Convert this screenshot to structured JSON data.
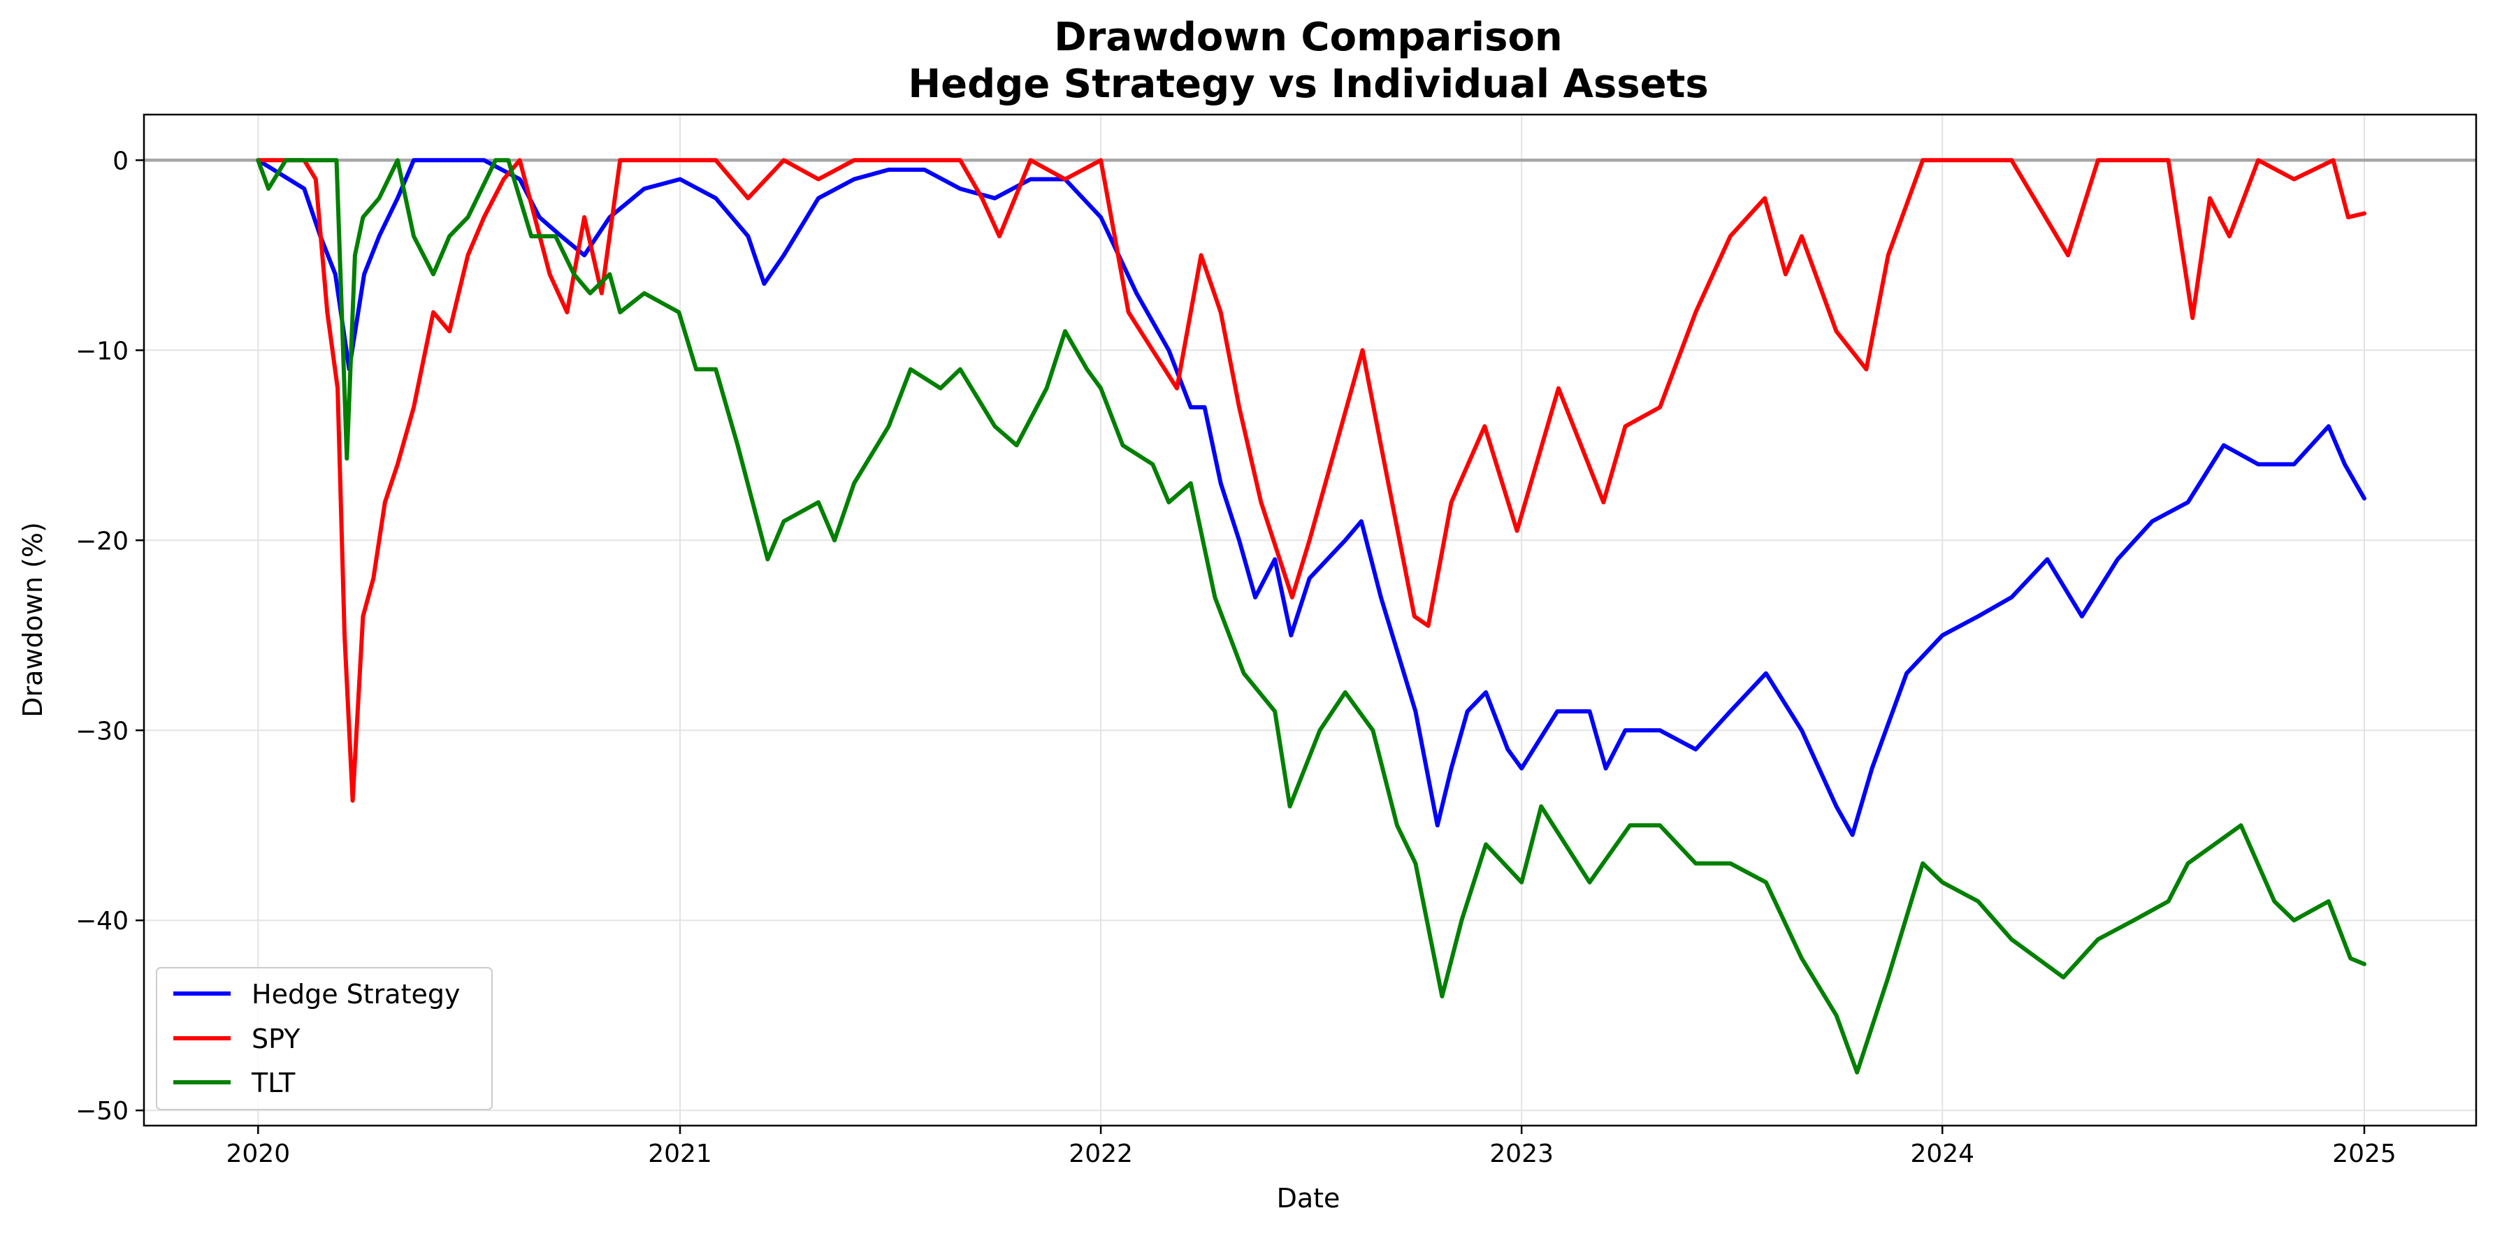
{
  "chart_data": {
    "type": "line",
    "title": "Drawdown Comparison",
    "subtitle": "Hedge Strategy vs Individual Assets",
    "xlabel": "Date",
    "ylabel": "Drawdown (%)",
    "xlim": [
      "2019-09-24",
      "2025-04-08"
    ],
    "ylim": [
      -50.8,
      2.4
    ],
    "x_ticks": [
      "2020",
      "2021",
      "2022",
      "2023",
      "2024",
      "2025"
    ],
    "y_ticks": [
      0,
      -10,
      -20,
      -30,
      -40,
      -50
    ],
    "grid": true,
    "legend_position": "lower-left",
    "zero_line": 0,
    "series": [
      {
        "name": "Hedge Strategy",
        "color": "#0000ff",
        "points": [
          [
            "2020-01-01",
            0
          ],
          [
            "2020-02-10",
            -1.5
          ],
          [
            "2020-02-24",
            -4
          ],
          [
            "2020-03-08",
            -6
          ],
          [
            "2020-03-20",
            -11
          ],
          [
            "2020-04-02",
            -6
          ],
          [
            "2020-04-15",
            -4
          ],
          [
            "2020-05-01",
            -2
          ],
          [
            "2020-05-15",
            0
          ],
          [
            "2020-06-15",
            0
          ],
          [
            "2020-07-15",
            0
          ],
          [
            "2020-08-15",
            -1
          ],
          [
            "2020-09-01",
            -3
          ],
          [
            "2020-09-20",
            -4
          ],
          [
            "2020-10-10",
            -5
          ],
          [
            "2020-11-01",
            -3
          ],
          [
            "2020-12-01",
            -1.5
          ],
          [
            "2021-01-01",
            -1
          ],
          [
            "2021-02-01",
            -2
          ],
          [
            "2021-03-01",
            -4
          ],
          [
            "2021-03-15",
            -6.5
          ],
          [
            "2021-04-01",
            -5
          ],
          [
            "2021-05-01",
            -2
          ],
          [
            "2021-06-01",
            -1
          ],
          [
            "2021-07-01",
            -0.5
          ],
          [
            "2021-08-01",
            -0.5
          ],
          [
            "2021-09-01",
            -1.5
          ],
          [
            "2021-10-01",
            -2
          ],
          [
            "2021-11-01",
            -1
          ],
          [
            "2021-12-01",
            -1
          ],
          [
            "2022-01-01",
            -3
          ],
          [
            "2022-02-01",
            -7
          ],
          [
            "2022-03-01",
            -10
          ],
          [
            "2022-03-20",
            -13
          ],
          [
            "2022-04-01",
            -13
          ],
          [
            "2022-04-15",
            -17
          ],
          [
            "2022-05-01",
            -20
          ],
          [
            "2022-05-15",
            -23
          ],
          [
            "2022-06-01",
            -21
          ],
          [
            "2022-06-15",
            -25
          ],
          [
            "2022-07-01",
            -22
          ],
          [
            "2022-08-01",
            -20
          ],
          [
            "2022-08-15",
            -19
          ],
          [
            "2022-09-01",
            -23
          ],
          [
            "2022-10-01",
            -29
          ],
          [
            "2022-10-20",
            -35
          ],
          [
            "2022-11-01",
            -32
          ],
          [
            "2022-11-15",
            -29
          ],
          [
            "2022-12-01",
            -28
          ],
          [
            "2022-12-20",
            -31
          ],
          [
            "2023-01-01",
            -32
          ],
          [
            "2023-02-01",
            -29
          ],
          [
            "2023-03-01",
            -29
          ],
          [
            "2023-03-15",
            -32
          ],
          [
            "2023-04-01",
            -30
          ],
          [
            "2023-05-01",
            -30
          ],
          [
            "2023-06-01",
            -31
          ],
          [
            "2023-07-01",
            -29
          ],
          [
            "2023-08-01",
            -27
          ],
          [
            "2023-09-01",
            -30
          ],
          [
            "2023-10-01",
            -34
          ],
          [
            "2023-10-15",
            -35.5
          ],
          [
            "2023-11-01",
            -32
          ],
          [
            "2023-12-01",
            -27
          ],
          [
            "2024-01-01",
            -25
          ],
          [
            "2024-02-01",
            -24
          ],
          [
            "2024-03-01",
            -23
          ],
          [
            "2024-04-01",
            -21
          ],
          [
            "2024-05-01",
            -24
          ],
          [
            "2024-06-01",
            -21
          ],
          [
            "2024-07-01",
            -19
          ],
          [
            "2024-08-01",
            -18
          ],
          [
            "2024-09-01",
            -15
          ],
          [
            "2024-10-01",
            -16
          ],
          [
            "2024-11-01",
            -16
          ],
          [
            "2024-12-01",
            -14
          ],
          [
            "2024-12-15",
            -16
          ],
          [
            "2025-01-01",
            -17.8
          ]
        ]
      },
      {
        "name": "SPY",
        "color": "#ff0000",
        "points": [
          [
            "2020-01-01",
            0
          ],
          [
            "2020-02-10",
            0
          ],
          [
            "2020-02-20",
            -1
          ],
          [
            "2020-03-01",
            -8
          ],
          [
            "2020-03-10",
            -12
          ],
          [
            "2020-03-16",
            -25
          ],
          [
            "2020-03-23",
            -33.7
          ],
          [
            "2020-04-01",
            -24
          ],
          [
            "2020-04-10",
            -22
          ],
          [
            "2020-04-20",
            -18
          ],
          [
            "2020-05-01",
            -16
          ],
          [
            "2020-05-15",
            -13
          ],
          [
            "2020-06-01",
            -8
          ],
          [
            "2020-06-15",
            -9
          ],
          [
            "2020-07-01",
            -5
          ],
          [
            "2020-07-15",
            -3
          ],
          [
            "2020-08-01",
            -1
          ],
          [
            "2020-08-15",
            0
          ],
          [
            "2020-09-10",
            -6
          ],
          [
            "2020-09-25",
            -8
          ],
          [
            "2020-10-10",
            -3
          ],
          [
            "2020-10-25",
            -7
          ],
          [
            "2020-11-10",
            0
          ],
          [
            "2020-12-01",
            0
          ],
          [
            "2021-01-01",
            0
          ],
          [
            "2021-02-01",
            0
          ],
          [
            "2021-03-01",
            -2
          ],
          [
            "2021-04-01",
            0
          ],
          [
            "2021-05-01",
            -1
          ],
          [
            "2021-06-01",
            0
          ],
          [
            "2021-07-01",
            0
          ],
          [
            "2021-08-01",
            0
          ],
          [
            "2021-09-01",
            0
          ],
          [
            "2021-09-20",
            -2
          ],
          [
            "2021-10-05",
            -4
          ],
          [
            "2021-11-01",
            0
          ],
          [
            "2021-12-01",
            -1
          ],
          [
            "2022-01-01",
            0
          ],
          [
            "2022-01-25",
            -8
          ],
          [
            "2022-02-15",
            -10
          ],
          [
            "2022-03-08",
            -12
          ],
          [
            "2022-03-29",
            -5
          ],
          [
            "2022-04-15",
            -8
          ],
          [
            "2022-05-01",
            -13
          ],
          [
            "2022-05-20",
            -18
          ],
          [
            "2022-06-16",
            -23
          ],
          [
            "2022-07-01",
            -20
          ],
          [
            "2022-08-16",
            -10
          ],
          [
            "2022-09-01",
            -15
          ],
          [
            "2022-09-30",
            -24
          ],
          [
            "2022-10-12",
            -24.5
          ],
          [
            "2022-11-01",
            -18
          ],
          [
            "2022-11-30",
            -14
          ],
          [
            "2022-12-28",
            -19.5
          ],
          [
            "2023-02-02",
            -12
          ],
          [
            "2023-03-13",
            -18
          ],
          [
            "2023-04-01",
            -14
          ],
          [
            "2023-05-01",
            -13
          ],
          [
            "2023-06-01",
            -8
          ],
          [
            "2023-07-01",
            -4
          ],
          [
            "2023-07-31",
            -2
          ],
          [
            "2023-08-18",
            -6
          ],
          [
            "2023-09-01",
            -4
          ],
          [
            "2023-10-01",
            -9
          ],
          [
            "2023-10-27",
            -11
          ],
          [
            "2023-11-15",
            -5
          ],
          [
            "2023-12-15",
            0
          ],
          [
            "2024-01-01",
            0
          ],
          [
            "2024-02-01",
            0
          ],
          [
            "2024-03-01",
            0
          ],
          [
            "2024-04-19",
            -5
          ],
          [
            "2024-05-15",
            0
          ],
          [
            "2024-06-15",
            0
          ],
          [
            "2024-07-15",
            0
          ],
          [
            "2024-08-05",
            -8.3
          ],
          [
            "2024-08-20",
            -2
          ],
          [
            "2024-09-06",
            -4
          ],
          [
            "2024-10-01",
            0
          ],
          [
            "2024-11-01",
            -1
          ],
          [
            "2024-12-05",
            0
          ],
          [
            "2024-12-18",
            -3
          ],
          [
            "2025-01-01",
            -2.8
          ]
        ]
      },
      {
        "name": "TLT",
        "color": "#008000",
        "points": [
          [
            "2020-01-01",
            0
          ],
          [
            "2020-01-10",
            -1.5
          ],
          [
            "2020-01-25",
            0
          ],
          [
            "2020-02-15",
            0
          ],
          [
            "2020-03-01",
            0
          ],
          [
            "2020-03-09",
            0
          ],
          [
            "2020-03-18",
            -15.7
          ],
          [
            "2020-03-25",
            -5
          ],
          [
            "2020-04-01",
            -3
          ],
          [
            "2020-04-15",
            -2
          ],
          [
            "2020-05-01",
            0
          ],
          [
            "2020-05-15",
            -4
          ],
          [
            "2020-06-01",
            -6
          ],
          [
            "2020-06-15",
            -4
          ],
          [
            "2020-07-01",
            -3
          ],
          [
            "2020-07-25",
            0
          ],
          [
            "2020-08-05",
            0
          ],
          [
            "2020-08-25",
            -4
          ],
          [
            "2020-09-15",
            -4
          ],
          [
            "2020-10-01",
            -6
          ],
          [
            "2020-10-15",
            -7
          ],
          [
            "2020-11-01",
            -6
          ],
          [
            "2020-11-10",
            -8
          ],
          [
            "2020-12-01",
            -7
          ],
          [
            "2020-12-31",
            -8
          ],
          [
            "2021-01-15",
            -11
          ],
          [
            "2021-02-01",
            -11
          ],
          [
            "2021-02-20",
            -15
          ],
          [
            "2021-03-18",
            -21
          ],
          [
            "2021-04-01",
            -19
          ],
          [
            "2021-05-01",
            -18
          ],
          [
            "2021-05-15",
            -20
          ],
          [
            "2021-06-01",
            -17
          ],
          [
            "2021-07-01",
            -14
          ],
          [
            "2021-07-20",
            -11
          ],
          [
            "2021-08-15",
            -12
          ],
          [
            "2021-09-01",
            -11
          ],
          [
            "2021-10-01",
            -14
          ],
          [
            "2021-10-20",
            -15
          ],
          [
            "2021-11-15",
            -12
          ],
          [
            "2021-12-01",
            -9
          ],
          [
            "2021-12-20",
            -11
          ],
          [
            "2022-01-01",
            -12
          ],
          [
            "2022-01-20",
            -15
          ],
          [
            "2022-02-15",
            -16
          ],
          [
            "2022-03-01",
            -18
          ],
          [
            "2022-03-20",
            -17
          ],
          [
            "2022-04-10",
            -23
          ],
          [
            "2022-05-05",
            -27
          ],
          [
            "2022-06-01",
            -29
          ],
          [
            "2022-06-14",
            -34
          ],
          [
            "2022-07-10",
            -30
          ],
          [
            "2022-08-01",
            -28
          ],
          [
            "2022-08-25",
            -30
          ],
          [
            "2022-09-15",
            -35
          ],
          [
            "2022-10-01",
            -37
          ],
          [
            "2022-10-24",
            -44
          ],
          [
            "2022-11-10",
            -40
          ],
          [
            "2022-12-01",
            -36
          ],
          [
            "2023-01-01",
            -38
          ],
          [
            "2023-01-18",
            -34
          ],
          [
            "2023-03-01",
            -38
          ],
          [
            "2023-04-05",
            -35
          ],
          [
            "2023-05-01",
            -35
          ],
          [
            "2023-06-01",
            -37
          ],
          [
            "2023-07-01",
            -37
          ],
          [
            "2023-08-01",
            -38
          ],
          [
            "2023-09-01",
            -42
          ],
          [
            "2023-10-01",
            -45
          ],
          [
            "2023-10-19",
            -48
          ],
          [
            "2023-11-15",
            -43
          ],
          [
            "2023-12-15",
            -37
          ],
          [
            "2024-01-01",
            -38
          ],
          [
            "2024-02-01",
            -39
          ],
          [
            "2024-03-01",
            -41
          ],
          [
            "2024-04-15",
            -43
          ],
          [
            "2024-05-15",
            -41
          ],
          [
            "2024-06-15",
            -40
          ],
          [
            "2024-07-15",
            -39
          ],
          [
            "2024-08-01",
            -37
          ],
          [
            "2024-09-16",
            -35
          ],
          [
            "2024-10-15",
            -39
          ],
          [
            "2024-11-01",
            -40
          ],
          [
            "2024-12-01",
            -39
          ],
          [
            "2024-12-20",
            -42
          ],
          [
            "2025-01-01",
            -42.3
          ]
        ]
      }
    ]
  }
}
